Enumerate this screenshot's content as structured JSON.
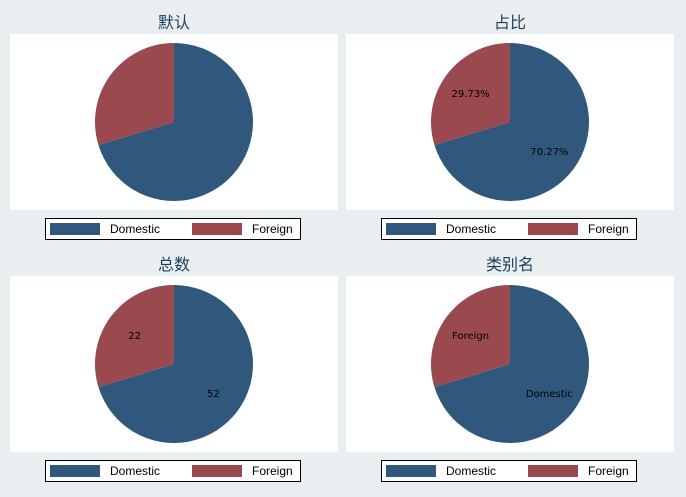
{
  "chart_data": [
    {
      "type": "pie",
      "title": "默认",
      "categories": [
        "Domestic",
        "Foreign"
      ],
      "values": [
        52,
        22
      ],
      "slice_labels": [],
      "colors": [
        "#30587c",
        "#9a4a4f"
      ],
      "legend": {
        "placement": "bottom",
        "labels": [
          "Domestic",
          "Foreign"
        ]
      }
    },
    {
      "type": "pie",
      "title": "占比",
      "categories": [
        "Domestic",
        "Foreign"
      ],
      "values": [
        52,
        22
      ],
      "slice_labels": [
        "70.27%",
        "29.73%"
      ],
      "colors": [
        "#30587c",
        "#9a4a4f"
      ],
      "legend": {
        "placement": "bottom",
        "labels": [
          "Domestic",
          "Foreign"
        ]
      }
    },
    {
      "type": "pie",
      "title": "总数",
      "categories": [
        "Domestic",
        "Foreign"
      ],
      "values": [
        52,
        22
      ],
      "slice_labels": [
        "52",
        "22"
      ],
      "colors": [
        "#30587c",
        "#9a4a4f"
      ],
      "legend": {
        "placement": "bottom",
        "labels": [
          "Domestic",
          "Foreign"
        ]
      }
    },
    {
      "type": "pie",
      "title": "类别名",
      "categories": [
        "Domestic",
        "Foreign"
      ],
      "values": [
        52,
        22
      ],
      "slice_labels": [
        "Domestic",
        "Foreign"
      ],
      "colors": [
        "#30587c",
        "#9a4a4f"
      ],
      "legend": {
        "placement": "bottom",
        "labels": [
          "Domestic",
          "Foreign"
        ]
      }
    }
  ]
}
